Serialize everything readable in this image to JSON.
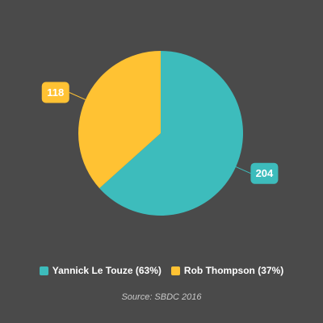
{
  "chart_data": {
    "type": "pie",
    "categories": [
      "Yannick Le Touze",
      "Rob Thompson"
    ],
    "values": [
      204,
      118
    ],
    "colors": [
      "#3dbcbc",
      "#ffc233"
    ],
    "legend": [
      {
        "label": "Yannick Le Touze (63%)",
        "color": "#3dbcbc"
      },
      {
        "label": "Rob Thompson (37%)",
        "color": "#ffc233"
      }
    ],
    "data_labels": [
      "204",
      "118"
    ],
    "legend_placement": "bottom",
    "source": "Source: SBDC 2016"
  },
  "colors": {
    "background": "#4a4a4a"
  }
}
